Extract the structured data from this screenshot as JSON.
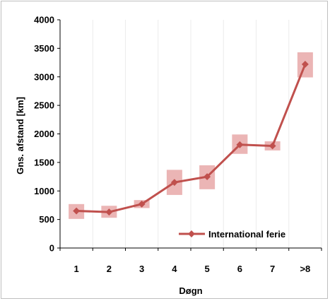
{
  "chart_data": {
    "type": "line",
    "categories": [
      "1",
      "2",
      "3",
      "4",
      "5",
      "6",
      "7",
      ">8"
    ],
    "series": [
      {
        "name": "International ferie",
        "values": [
          650,
          630,
          770,
          1150,
          1250,
          1810,
          1790,
          3220
        ],
        "error_low": [
          510,
          530,
          700,
          930,
          1030,
          1650,
          1710,
          2990
        ],
        "error_high": [
          770,
          740,
          840,
          1370,
          1450,
          1990,
          1870,
          3430
        ],
        "color": "#c0504d",
        "error_color": "#e8a8a8"
      }
    ],
    "y_ticks": [
      "0",
      "500",
      "1000",
      "1500",
      "2000",
      "2500",
      "3000",
      "3500",
      "4000"
    ],
    "ylim": [
      0,
      4000
    ],
    "xlabel": "Døgn",
    "ylabel": "Gns. afstand [km]",
    "grid": "vertical-category-lines",
    "legend": "bottom-right"
  }
}
